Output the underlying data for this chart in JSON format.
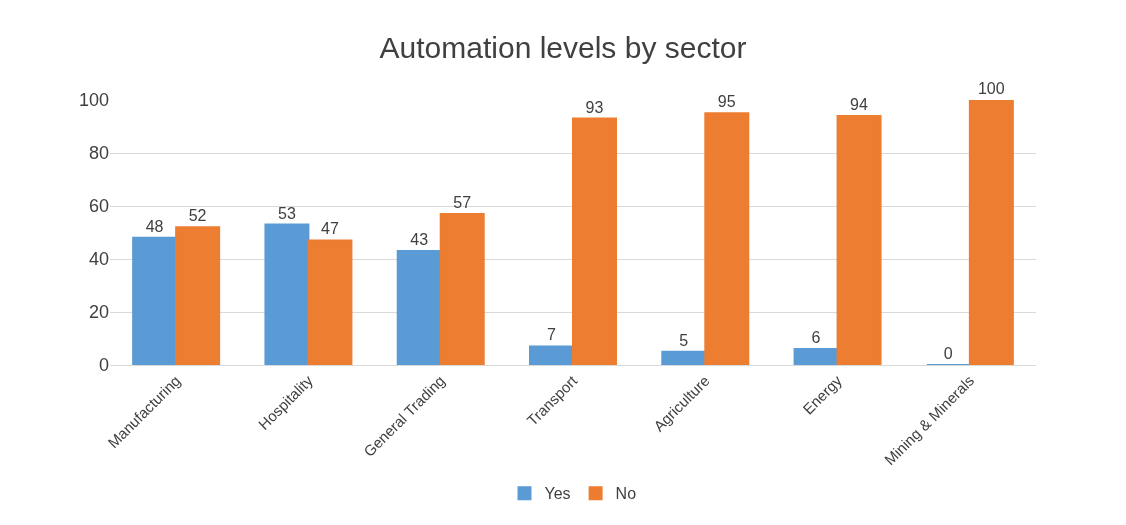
{
  "chart_data": {
    "type": "bar",
    "title": "Automation levels by sector",
    "categories": [
      "Manufacturing",
      "Hospitality",
      "General Trading",
      "Transport",
      "Agriculture",
      "Energy",
      "Mining & Minerals"
    ],
    "series": [
      {
        "name": "Yes",
        "color": "#5b9bd5",
        "values": [
          48,
          53,
          43,
          7,
          5,
          6,
          0
        ]
      },
      {
        "name": "No",
        "color": "#ed7d31",
        "values": [
          52,
          47,
          57,
          93,
          95,
          94,
          100
        ]
      }
    ],
    "ylim": [
      0,
      100
    ],
    "yticks": [
      0,
      20,
      40,
      60,
      80,
      100
    ],
    "grid": "y",
    "legend": "bottom",
    "data_labels": true
  }
}
